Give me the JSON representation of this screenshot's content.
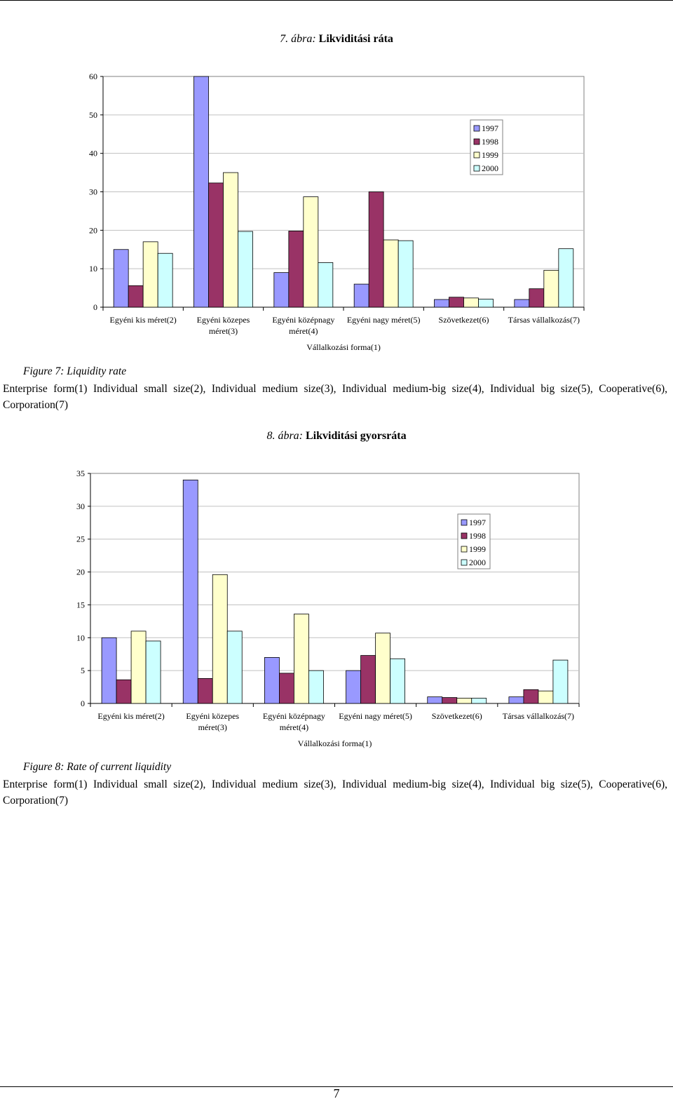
{
  "page_number": "7",
  "chart_data": [
    {
      "type": "bar",
      "title_prefix": "7. ábra:",
      "title": "Likviditási ráta",
      "xlabel": "Vállalkozási forma(1)",
      "ylabel": "",
      "ylim": [
        0,
        60
      ],
      "yticks": [
        "0",
        "10",
        "20",
        "30",
        "40",
        "50",
        "60"
      ],
      "categories": [
        [
          "Egyéni kis méret(2)"
        ],
        [
          "Egyéni közepes",
          "méret(3)"
        ],
        [
          "Egyéni középnagy",
          "méret(4)"
        ],
        [
          "Egyéni nagy méret(5)"
        ],
        [
          "Szövetkezet(6)"
        ],
        [
          "Társas vállalkozás(7)"
        ]
      ],
      "series": [
        {
          "name": "1997",
          "color": "#9999ff",
          "values": [
            15,
            60,
            9,
            6,
            2,
            2
          ]
        },
        {
          "name": "1998",
          "color": "#993366",
          "values": [
            5.6,
            32.3,
            19.8,
            30,
            2.6,
            4.8
          ]
        },
        {
          "name": "1999",
          "color": "#ffffcc",
          "values": [
            17,
            35,
            28.7,
            17.5,
            2.4,
            9.6
          ]
        },
        {
          "name": "2000",
          "color": "#ccffff",
          "values": [
            14,
            19.7,
            11.6,
            17.3,
            2.1,
            15.2
          ]
        }
      ],
      "grid": true,
      "legend": "right",
      "caption": "Figure 7: Liquidity rate",
      "description": "Enterprise form(1) Individual small size(2), Individual medium size(3), Individual medium-big size(4), Individual big size(5), Cooperative(6), Corporation(7)"
    },
    {
      "type": "bar",
      "title_prefix": "8. ábra:",
      "title": "Likviditási gyorsráta",
      "xlabel": "Vállalkozási forma(1)",
      "ylabel": "",
      "ylim": [
        0,
        35
      ],
      "yticks": [
        "0",
        "5",
        "10",
        "15",
        "20",
        "25",
        "30",
        "35"
      ],
      "categories": [
        [
          "Egyéni kis méret(2)"
        ],
        [
          "Egyéni közepes",
          "méret(3)"
        ],
        [
          "Egyéni középnagy",
          "méret(4)"
        ],
        [
          "Egyéni nagy méret(5)"
        ],
        [
          "Szövetkezet(6)"
        ],
        [
          "Társas vállalkozás(7)"
        ]
      ],
      "series": [
        {
          "name": "1997",
          "color": "#9999ff",
          "values": [
            10,
            34,
            7,
            5,
            1,
            1
          ]
        },
        {
          "name": "1998",
          "color": "#993366",
          "values": [
            3.6,
            3.8,
            4.6,
            7.3,
            0.9,
            2.1
          ]
        },
        {
          "name": "1999",
          "color": "#ffffcc",
          "values": [
            11,
            19.6,
            13.6,
            10.7,
            0.8,
            1.9
          ]
        },
        {
          "name": "2000",
          "color": "#ccffff",
          "values": [
            9.5,
            11,
            5,
            6.8,
            0.8,
            6.6
          ]
        }
      ],
      "grid": true,
      "legend": "right",
      "caption": "Figure 8: Rate of current liquidity",
      "description": "Enterprise form(1) Individual small size(2), Individual medium size(3), Individual medium-big size(4), Individual big size(5), Cooperative(6), Corporation(7)"
    }
  ]
}
